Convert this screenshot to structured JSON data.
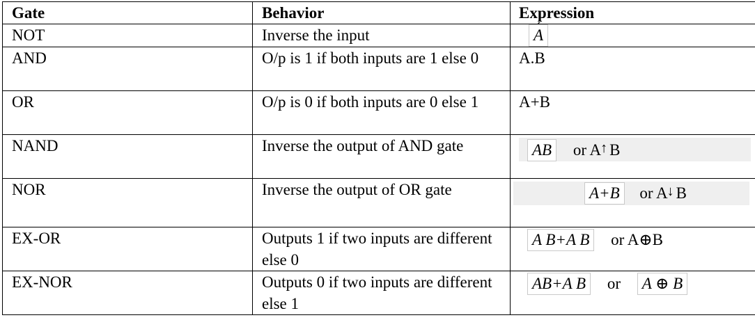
{
  "headers": [
    "Gate",
    "Behavior",
    "Expression"
  ],
  "rows": [
    {
      "gate": "NOT",
      "behavior": "Inverse the input",
      "expr": {
        "box1": "A"
      }
    },
    {
      "gate": "AND",
      "behavior": "O/p is 1 if both inputs are 1 else 0",
      "expr": {
        "text": "A.B"
      }
    },
    {
      "gate": "OR",
      "behavior": "O/p is 0 if both inputs are 0 else 1",
      "expr": {
        "text": "A+B"
      }
    },
    {
      "gate": "NAND",
      "behavior": "Inverse the output of AND gate",
      "expr": {
        "box1": "AB",
        "or_text": "or A",
        "tail": "B",
        "arrow": "↑"
      }
    },
    {
      "gate": "NOR",
      "behavior": "Inverse the output of OR gate",
      "expr": {
        "box1": "A+B",
        "or_text": "or A",
        "tail": "B",
        "arrow": "↓"
      }
    },
    {
      "gate": "EX-OR",
      "behavior": "Outputs 1 if two inputs are different else 0",
      "expr": {
        "box1": "A B+A B",
        "or_text": "or A⊕B"
      }
    },
    {
      "gate": "EX-NOR",
      "behavior": "Outputs 0 if two inputs are different else 1",
      "expr": {
        "box1": "AB+A B",
        "or_text": "or",
        "box2": "A ⊕ B"
      }
    }
  ]
}
